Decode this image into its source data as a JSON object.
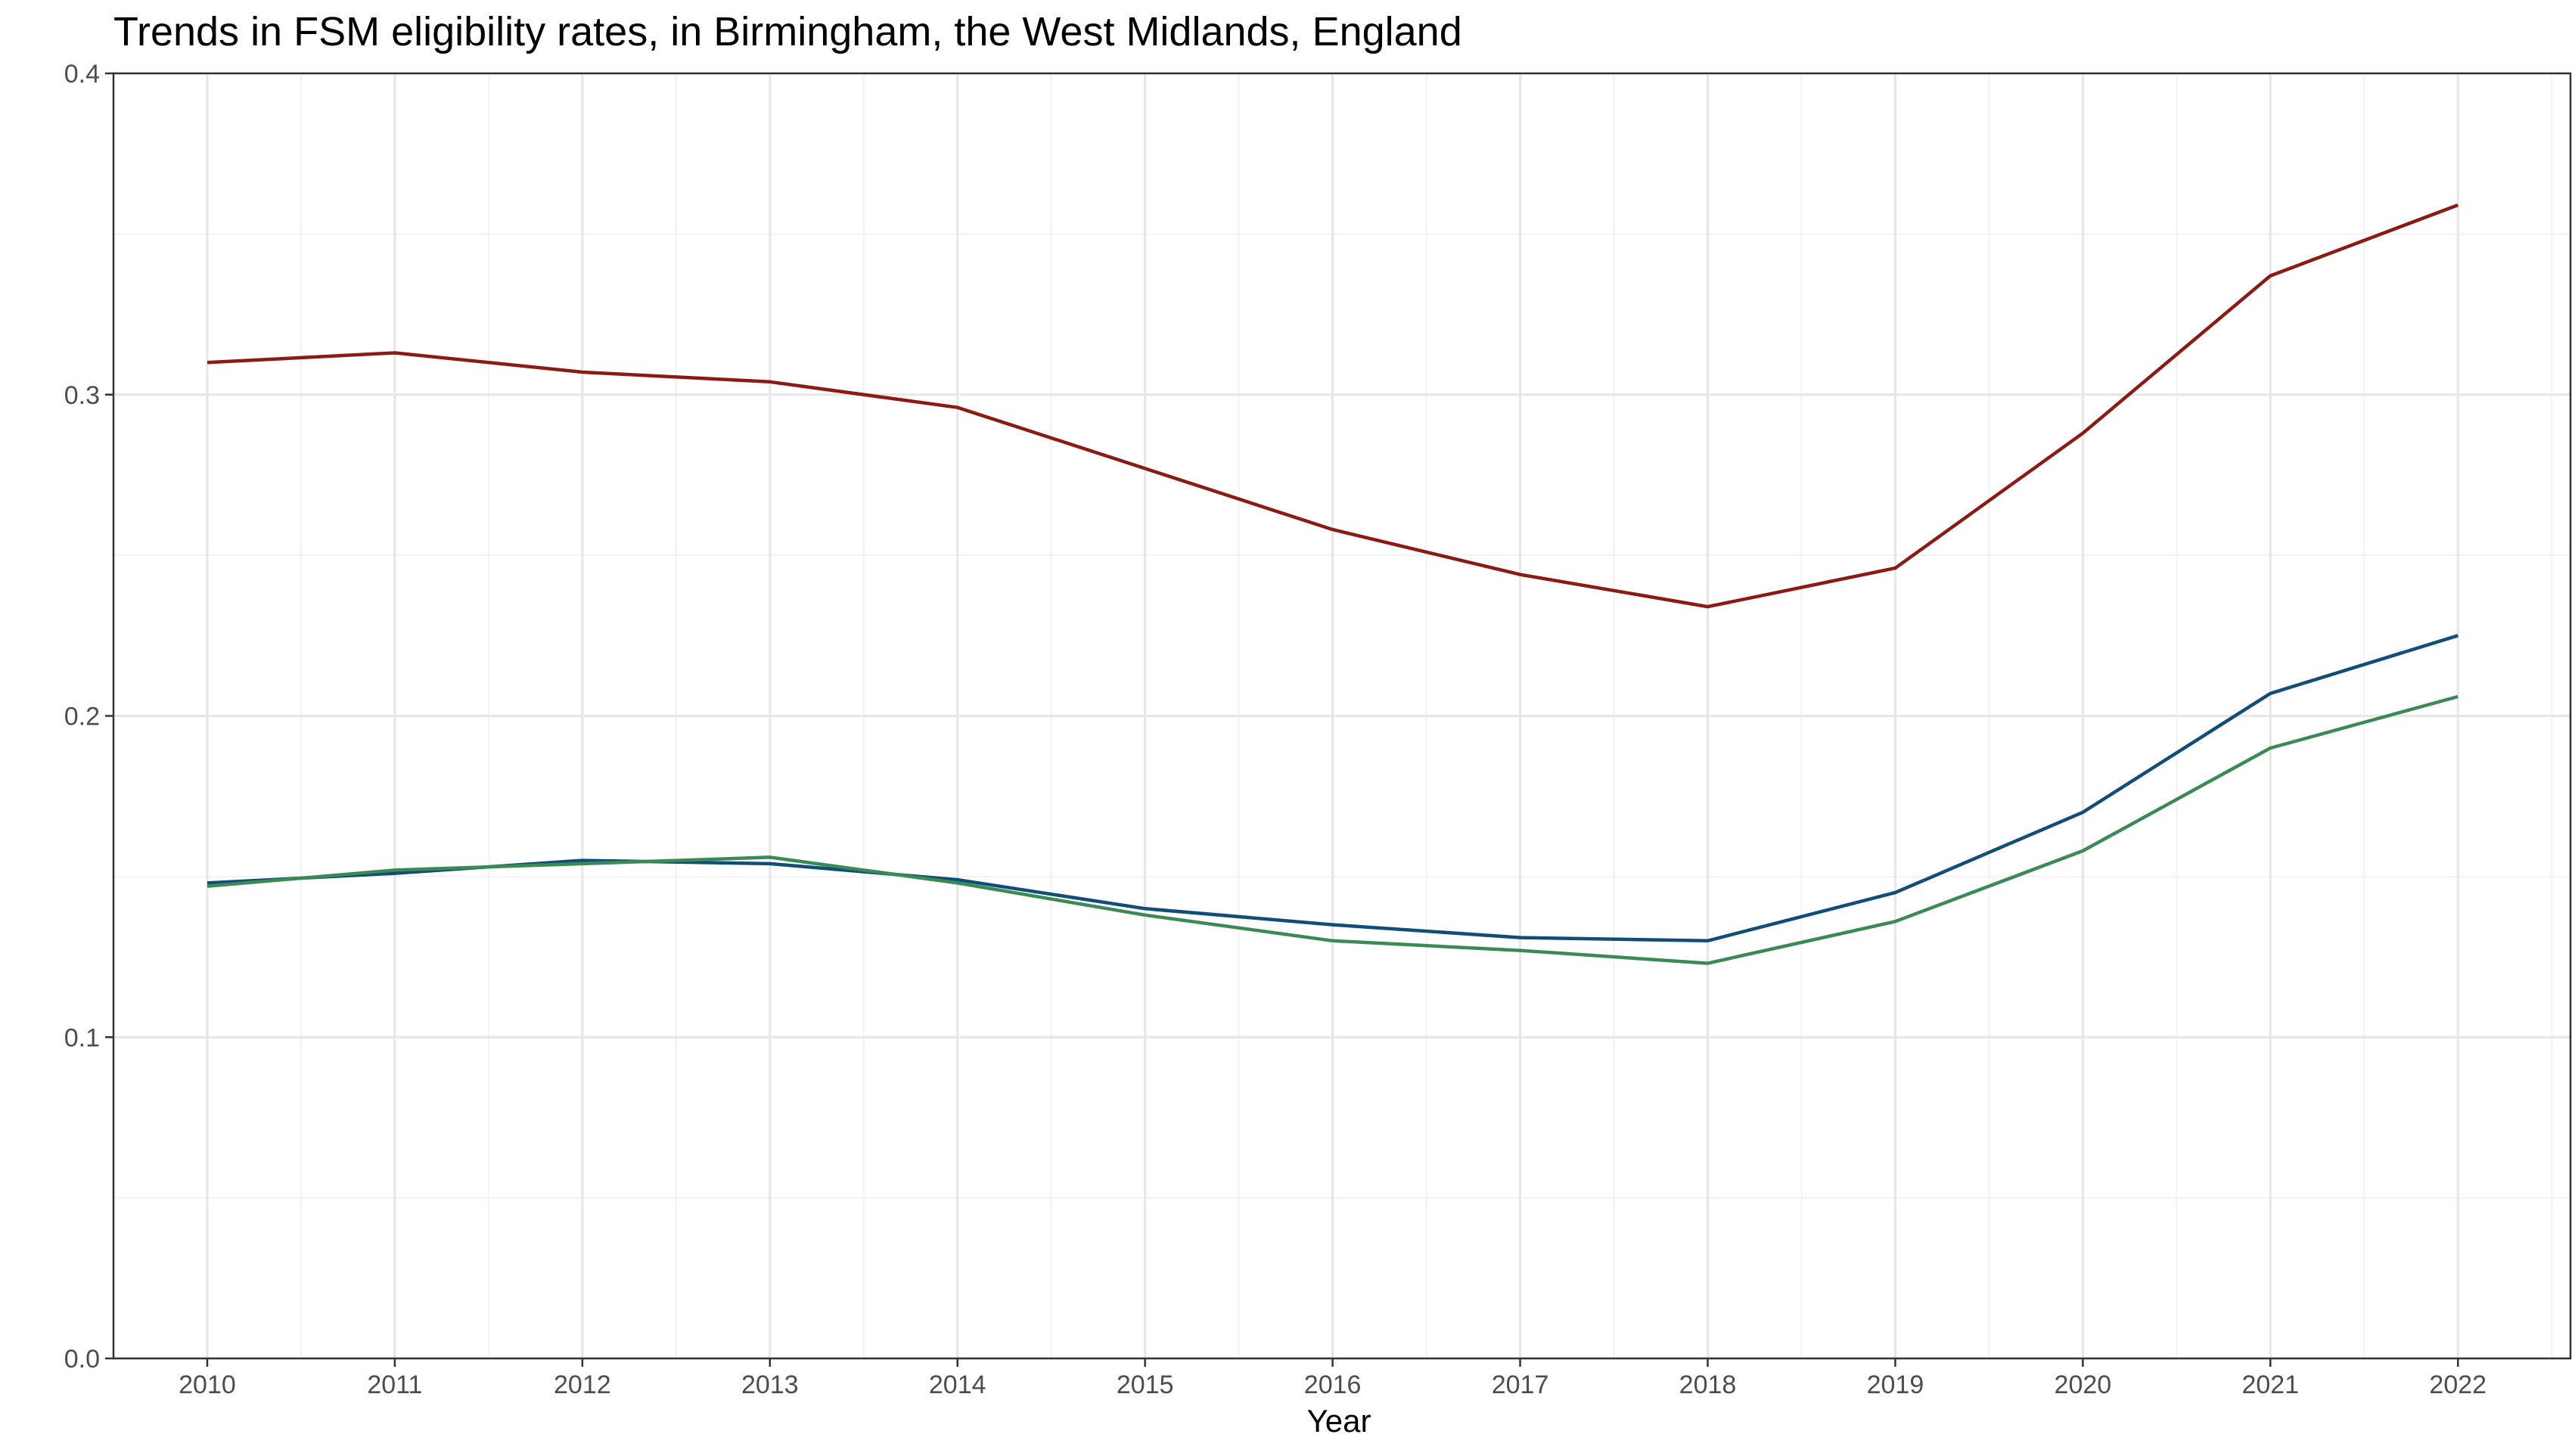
{
  "chart_data": {
    "type": "line",
    "title": "Trends in FSM eligibility rates, in Birmingham, the West Midlands, England",
    "xlabel": "Year",
    "ylabel": "",
    "x": [
      2010,
      2011,
      2012,
      2013,
      2014,
      2015,
      2016,
      2017,
      2018,
      2019,
      2020,
      2021,
      2022
    ],
    "xlim": [
      2009.5,
      2022.6
    ],
    "ylim": [
      0.0,
      0.4
    ],
    "x_ticks": [
      "2010",
      "2011",
      "2012",
      "2013",
      "2014",
      "2015",
      "2016",
      "2017",
      "2018",
      "2019",
      "2020",
      "2021",
      "2022"
    ],
    "y_ticks": [
      "0.0",
      "0.1",
      "0.2",
      "0.3",
      "0.4"
    ],
    "grid": true,
    "legend": "none",
    "series": [
      {
        "color": "#8b1a14",
        "values": [
          0.31,
          0.313,
          0.307,
          0.304,
          0.296,
          0.277,
          0.258,
          0.244,
          0.234,
          0.246,
          0.288,
          0.337,
          0.359
        ]
      },
      {
        "color": "#104e78",
        "values": [
          0.148,
          0.151,
          0.155,
          0.154,
          0.149,
          0.14,
          0.135,
          0.131,
          0.13,
          0.145,
          0.17,
          0.207,
          0.225
        ]
      },
      {
        "color": "#3a8a55",
        "values": [
          0.147,
          0.152,
          0.154,
          0.156,
          0.148,
          0.138,
          0.13,
          0.127,
          0.123,
          0.136,
          0.158,
          0.19,
          0.206
        ]
      }
    ]
  }
}
